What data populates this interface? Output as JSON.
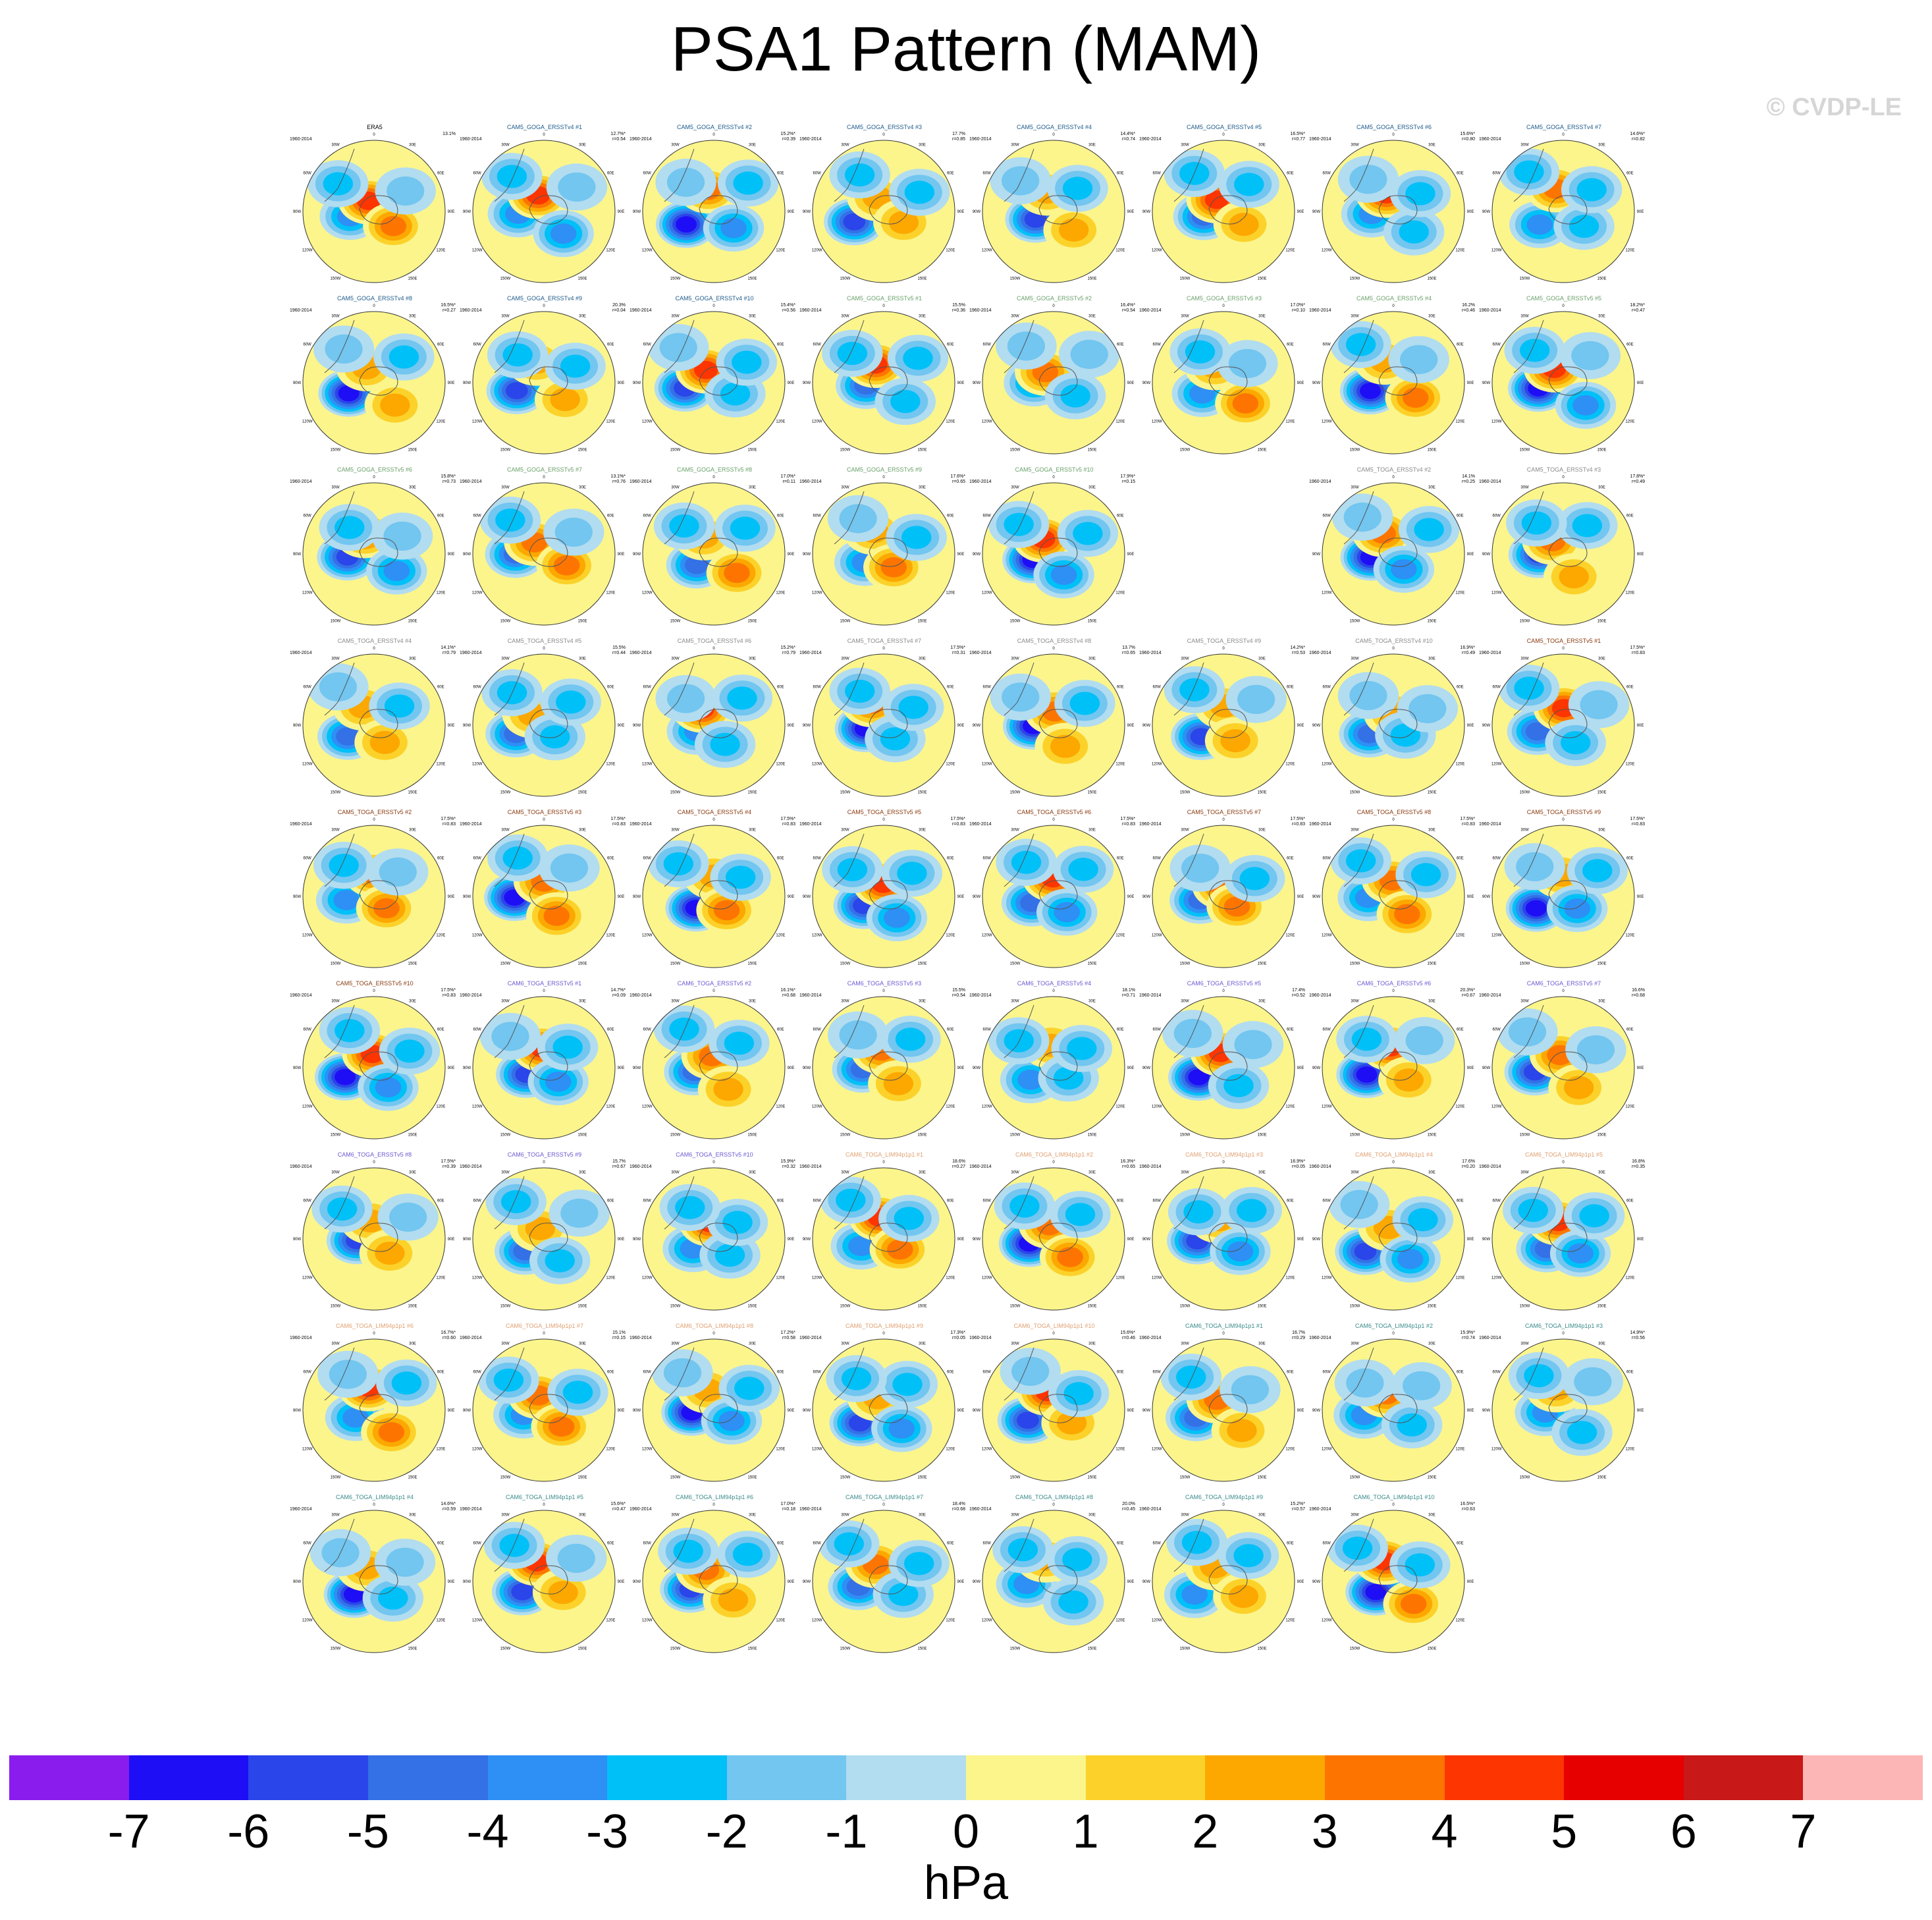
{
  "title": "PSA1 Pattern (MAM)",
  "watermark": "© CVDP-LE",
  "units": "hPa",
  "colorbar": {
    "colors": [
      "#8a1dee",
      "#1e0ef5",
      "#2a45ea",
      "#3470e6",
      "#2e8ff5",
      "#00c0f8",
      "#72c6f0",
      "#b2dcf0",
      "#fbf58c",
      "#fcd22a",
      "#fca800",
      "#fd7500",
      "#fd3500",
      "#e60000",
      "#c81818",
      "#fdb6b6"
    ],
    "tick_labels": [
      "-7",
      "-6",
      "-5",
      "-4",
      "-3",
      "-2",
      "-1",
      "0",
      "1",
      "2",
      "3",
      "4",
      "5",
      "6",
      "7"
    ]
  },
  "map_labels": {
    "n": "0",
    "w1": "30W",
    "w2": "60W",
    "w3": "90W",
    "w4": "120W",
    "w5": "150W",
    "s": "180",
    "e1": "30E",
    "e2": "60E",
    "e3": "90E",
    "e4": "120E",
    "e5": "150E"
  },
  "panels": [
    {
      "name": "ERA5",
      "color": "#000000",
      "period": "1960-2014",
      "stat1": "13.1%",
      "stat2": ""
    },
    {
      "name": "CAM5_GOGA_ERSSTv4 #1",
      "color": "#1d5a8a",
      "period": "1960-2014",
      "stat1": "12.7%*",
      "stat2": "r=0.54"
    },
    {
      "name": "CAM5_GOGA_ERSSTv4 #2",
      "color": "#1d5a8a",
      "period": "1960-2014",
      "stat1": "15.2%*",
      "stat2": "r=0.39"
    },
    {
      "name": "CAM5_GOGA_ERSSTv4 #3",
      "color": "#1d5a8a",
      "period": "1960-2014",
      "stat1": "17.7%",
      "stat2": "r=0.85"
    },
    {
      "name": "CAM5_GOGA_ERSSTv4 #4",
      "color": "#1d5a8a",
      "period": "1960-2014",
      "stat1": "14.4%*",
      "stat2": "r=0.74"
    },
    {
      "name": "CAM5_GOGA_ERSSTv4 #5",
      "color": "#1d5a8a",
      "period": "1960-2014",
      "stat1": "16.5%*",
      "stat2": "r=0.77"
    },
    {
      "name": "CAM5_GOGA_ERSSTv4 #6",
      "color": "#1d5a8a",
      "period": "1960-2014",
      "stat1": "15.6%*",
      "stat2": "r=0.80"
    },
    {
      "name": "CAM5_GOGA_ERSSTv4 #7",
      "color": "#1d5a8a",
      "period": "1960-2014",
      "stat1": "14.6%*",
      "stat2": "r=0.82"
    },
    {
      "name": "CAM5_GOGA_ERSSTv4 #8",
      "color": "#1d5a8a",
      "period": "1960-2014",
      "stat1": "16.5%*",
      "stat2": "r=0.27"
    },
    {
      "name": "CAM5_GOGA_ERSSTv4 #9",
      "color": "#1d5a8a",
      "period": "1960-2014",
      "stat1": "20.3%",
      "stat2": "r=0.04"
    },
    {
      "name": "CAM5_GOGA_ERSSTv4 #10",
      "color": "#1d5a8a",
      "period": "1960-2014",
      "stat1": "15.4%*",
      "stat2": "r=0.56"
    },
    {
      "name": "CAM5_GOGA_ERSSTv5 #1",
      "color": "#6aa06a",
      "period": "1960-2014",
      "stat1": "15.5%",
      "stat2": "r=0.36"
    },
    {
      "name": "CAM5_GOGA_ERSSTv5 #2",
      "color": "#6aa06a",
      "period": "1960-2014",
      "stat1": "16.4%*",
      "stat2": "r=0.54"
    },
    {
      "name": "CAM5_GOGA_ERSSTv5 #3",
      "color": "#6aa06a",
      "period": "1960-2014",
      "stat1": "17.0%*",
      "stat2": "r=0.10"
    },
    {
      "name": "CAM5_GOGA_ERSSTv5 #4",
      "color": "#6aa06a",
      "period": "1960-2014",
      "stat1": "16.2%",
      "stat2": "r=0.46"
    },
    {
      "name": "CAM5_GOGA_ERSSTv5 #5",
      "color": "#6aa06a",
      "period": "1960-2014",
      "stat1": "18.2%*",
      "stat2": "r=0.47"
    },
    {
      "name": "CAM5_GOGA_ERSSTv5 #6",
      "color": "#6aa06a",
      "period": "1960-2014",
      "stat1": "15.8%*",
      "stat2": "r=0.73"
    },
    {
      "name": "CAM5_GOGA_ERSSTv5 #7",
      "color": "#6aa06a",
      "period": "1960-2014",
      "stat1": "13.1%*",
      "stat2": "r=0.76"
    },
    {
      "name": "CAM5_GOGA_ERSSTv5 #8",
      "color": "#6aa06a",
      "period": "1960-2014",
      "stat1": "17.0%*",
      "stat2": "r=0.11"
    },
    {
      "name": "CAM5_GOGA_ERSSTv5 #9",
      "color": "#6aa06a",
      "period": "1960-2014",
      "stat1": "17.6%*",
      "stat2": "r=0.65"
    },
    {
      "name": "CAM5_GOGA_ERSSTv5 #10",
      "color": "#6aa06a",
      "period": "1960-2014",
      "stat1": "17.9%*",
      "stat2": "r=0.15"
    },
    {
      "name": "CAM5_TOGA_ERSSTv4 #2",
      "color": "#8a8a8a",
      "period": "1960-2014",
      "stat1": "14.1%",
      "stat2": "r=0.25"
    },
    {
      "name": "CAM5_TOGA_ERSSTv4 #3",
      "color": "#8a8a8a",
      "period": "1960-2014",
      "stat1": "17.8%*",
      "stat2": "r=0.49"
    },
    {
      "name": "CAM5_TOGA_ERSSTv4 #4",
      "color": "#8a8a8a",
      "period": "1960-2014",
      "stat1": "14.1%*",
      "stat2": "r=0.79"
    },
    {
      "name": "CAM5_TOGA_ERSSTv4 #5",
      "color": "#8a8a8a",
      "period": "1960-2014",
      "stat1": "15.5%",
      "stat2": "r=0.44"
    },
    {
      "name": "CAM5_TOGA_ERSSTv4 #6",
      "color": "#8a8a8a",
      "period": "1960-2014",
      "stat1": "15.2%*",
      "stat2": "r=0.79"
    },
    {
      "name": "CAM5_TOGA_ERSSTv4 #7",
      "color": "#8a8a8a",
      "period": "1960-2014",
      "stat1": "17.5%*",
      "stat2": "r=0.31"
    },
    {
      "name": "CAM5_TOGA_ERSSTv4 #8",
      "color": "#8a8a8a",
      "period": "1960-2014",
      "stat1": "13.7%",
      "stat2": "r=0.65"
    },
    {
      "name": "CAM5_TOGA_ERSSTv4 #9",
      "color": "#8a8a8a",
      "period": "1960-2014",
      "stat1": "14.2%*",
      "stat2": "r=0.53"
    },
    {
      "name": "CAM5_TOGA_ERSSTv4 #10",
      "color": "#8a8a8a",
      "period": "1960-2014",
      "stat1": "16.9%*",
      "stat2": "r=0.49"
    },
    {
      "name": "CAM5_TOGA_ERSSTv5 #1",
      "color": "#8a3a10",
      "period": "1960-2014",
      "stat1": "17.5%*",
      "stat2": "r=0.83"
    },
    {
      "name": "CAM5_TOGA_ERSSTv5 #2",
      "color": "#8a3a10",
      "period": "1960-2014",
      "stat1": "17.5%*",
      "stat2": "r=0.83"
    },
    {
      "name": "CAM5_TOGA_ERSSTv5 #3",
      "color": "#8a3a10",
      "period": "1960-2014",
      "stat1": "17.5%*",
      "stat2": "r=0.83"
    },
    {
      "name": "CAM5_TOGA_ERSSTv5 #4",
      "color": "#8a3a10",
      "period": "1960-2014",
      "stat1": "17.5%*",
      "stat2": "r=0.83"
    },
    {
      "name": "CAM5_TOGA_ERSSTv5 #5",
      "color": "#8a3a10",
      "period": "1960-2014",
      "stat1": "17.5%*",
      "stat2": "r=0.83"
    },
    {
      "name": "CAM5_TOGA_ERSSTv5 #6",
      "color": "#8a3a10",
      "period": "1960-2014",
      "stat1": "17.5%*",
      "stat2": "r=0.83"
    },
    {
      "name": "CAM5_TOGA_ERSSTv5 #7",
      "color": "#8a3a10",
      "period": "1960-2014",
      "stat1": "17.5%*",
      "stat2": "r=0.83"
    },
    {
      "name": "CAM5_TOGA_ERSSTv5 #8",
      "color": "#8a3a10",
      "period": "1960-2014",
      "stat1": "17.5%*",
      "stat2": "r=0.83"
    },
    {
      "name": "CAM5_TOGA_ERSSTv5 #9",
      "color": "#8a3a10",
      "period": "1960-2014",
      "stat1": "17.5%*",
      "stat2": "r=0.83"
    },
    {
      "name": "CAM5_TOGA_ERSSTv5 #10",
      "color": "#8a3a10",
      "period": "1960-2014",
      "stat1": "17.5%*",
      "stat2": "r=0.83"
    },
    {
      "name": "CAM6_TOGA_ERSSTv5 #1",
      "color": "#6a5ad0",
      "period": "1960-2014",
      "stat1": "14.7%*",
      "stat2": "r=0.09"
    },
    {
      "name": "CAM6_TOGA_ERSSTv5 #2",
      "color": "#6a5ad0",
      "period": "1960-2014",
      "stat1": "16.1%*",
      "stat2": "r=0.68"
    },
    {
      "name": "CAM6_TOGA_ERSSTv5 #3",
      "color": "#6a5ad0",
      "period": "1960-2014",
      "stat1": "15.5%",
      "stat2": "r=0.54"
    },
    {
      "name": "CAM6_TOGA_ERSSTv5 #4",
      "color": "#6a5ad0",
      "period": "1960-2014",
      "stat1": "18.1%",
      "stat2": "r=0.71"
    },
    {
      "name": "CAM6_TOGA_ERSSTv5 #5",
      "color": "#6a5ad0",
      "period": "1960-2014",
      "stat1": "17.4%",
      "stat2": "r=0.52"
    },
    {
      "name": "CAM6_TOGA_ERSSTv5 #6",
      "color": "#6a5ad0",
      "period": "1960-2014",
      "stat1": "20.3%*",
      "stat2": "r=0.67"
    },
    {
      "name": "CAM6_TOGA_ERSSTv5 #7",
      "color": "#6a5ad0",
      "period": "1960-2014",
      "stat1": "16.6%",
      "stat2": "r=0.68"
    },
    {
      "name": "CAM6_TOGA_ERSSTv5 #8",
      "color": "#6a5ad0",
      "period": "1960-2014",
      "stat1": "17.5%*",
      "stat2": "r=0.39"
    },
    {
      "name": "CAM6_TOGA_ERSSTv5 #9",
      "color": "#6a5ad0",
      "period": "1960-2014",
      "stat1": "15.7%",
      "stat2": "r=0.67"
    },
    {
      "name": "CAM6_TOGA_ERSSTv5 #10",
      "color": "#6a5ad0",
      "period": "1960-2014",
      "stat1": "15.9%*",
      "stat2": "r=0.32"
    },
    {
      "name": "CAM6_TOGA_LIM94p1p1 #1",
      "color": "#e0a070",
      "period": "1960-2014",
      "stat1": "18.6%",
      "stat2": "r=0.27"
    },
    {
      "name": "CAM6_TOGA_LIM94p1p1 #2",
      "color": "#e0a070",
      "period": "1960-2014",
      "stat1": "16.3%*",
      "stat2": "r=0.65"
    },
    {
      "name": "CAM6_TOGA_LIM94p1p1 #3",
      "color": "#e0a070",
      "period": "1960-2014",
      "stat1": "16.9%*",
      "stat2": "r=0.05"
    },
    {
      "name": "CAM6_TOGA_LIM94p1p1 #4",
      "color": "#e0a070",
      "period": "1960-2014",
      "stat1": "17.6%",
      "stat2": "r=0.20"
    },
    {
      "name": "CAM6_TOGA_LIM94p1p1 #5",
      "color": "#e0a070",
      "period": "1960-2014",
      "stat1": "16.8%",
      "stat2": "r=0.35"
    },
    {
      "name": "CAM6_TOGA_LIM94p1p1 #6",
      "color": "#e0a070",
      "period": "1960-2014",
      "stat1": "16.7%*",
      "stat2": "r=0.60"
    },
    {
      "name": "CAM6_TOGA_LIM94p1p1 #7",
      "color": "#e0a070",
      "period": "1960-2014",
      "stat1": "15.1%",
      "stat2": "r=0.15"
    },
    {
      "name": "CAM6_TOGA_LIM94p1p1 #8",
      "color": "#e0a070",
      "period": "1960-2014",
      "stat1": "17.2%*",
      "stat2": "r=0.58"
    },
    {
      "name": "CAM6_TOGA_LIM94p1p1 #9",
      "color": "#e0a070",
      "period": "1960-2014",
      "stat1": "17.3%*",
      "stat2": "r=0.05"
    },
    {
      "name": "CAM6_TOGA_LIM94p1p1 #10",
      "color": "#e0a070",
      "period": "1960-2014",
      "stat1": "15.6%*",
      "stat2": "r=0.46"
    },
    {
      "name": "CAM6_TOGA_LIM94p1p1 #1",
      "color": "#3a8a8a",
      "period": "1960-2014",
      "stat1": "16.7%",
      "stat2": "r=0.29"
    },
    {
      "name": "CAM6_TOGA_LIM94p1p1 #2",
      "color": "#3a8a8a",
      "period": "1960-2014",
      "stat1": "15.9%*",
      "stat2": "r=0.74"
    },
    {
      "name": "CAM6_TOGA_LIM94p1p1 #3",
      "color": "#3a8a8a",
      "period": "1960-2014",
      "stat1": "14.9%*",
      "stat2": "r=0.56"
    },
    {
      "name": "CAM6_TOGA_LIM94p1p1 #4",
      "color": "#3a8a8a",
      "period": "1960-2014",
      "stat1": "14.6%*",
      "stat2": "r=0.59"
    },
    {
      "name": "CAM6_TOGA_LIM94p1p1 #5",
      "color": "#3a8a8a",
      "period": "1960-2014",
      "stat1": "15.6%*",
      "stat2": "r=0.47"
    },
    {
      "name": "CAM6_TOGA_LIM94p1p1 #6",
      "color": "#3a8a8a",
      "period": "1960-2014",
      "stat1": "17.0%*",
      "stat2": "r=0.18"
    },
    {
      "name": "CAM6_TOGA_LIM94p1p1 #7",
      "color": "#3a8a8a",
      "period": "1960-2014",
      "stat1": "18.4%",
      "stat2": "r=0.68"
    },
    {
      "name": "CAM6_TOGA_LIM94p1p1 #8",
      "color": "#3a8a8a",
      "period": "1960-2014",
      "stat1": "20.0%",
      "stat2": "r=0.45"
    },
    {
      "name": "CAM6_TOGA_LIM94p1p1 #9",
      "color": "#3a8a8a",
      "period": "1960-2014",
      "stat1": "15.2%*",
      "stat2": "r=0.57"
    },
    {
      "name": "CAM6_TOGA_LIM94p1p1 #10",
      "color": "#3a8a8a",
      "period": "1960-2014",
      "stat1": "16.5%*",
      "stat2": "r=0.63"
    }
  ]
}
